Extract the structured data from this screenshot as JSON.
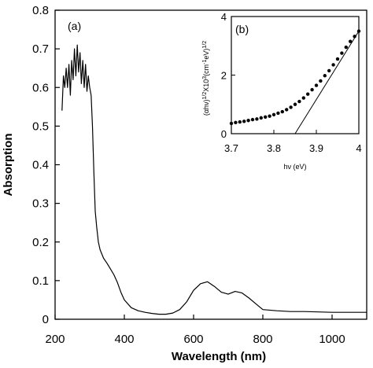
{
  "chart_data": [
    {
      "panel": "(a)",
      "type": "line",
      "xlabel": "Wavelength (nm)",
      "ylabel": "Absorption",
      "xlim": [
        200,
        1100
      ],
      "ylim": [
        0,
        0.8
      ],
      "xticks": [
        200,
        400,
        600,
        800,
        1000
      ],
      "yticks": [
        0,
        0.1,
        0.2,
        0.3,
        0.4,
        0.5,
        0.6,
        0.7,
        0.8
      ],
      "x": [
        220,
        224,
        228,
        232,
        236,
        240,
        244,
        248,
        252,
        256,
        260,
        264,
        268,
        272,
        276,
        280,
        284,
        288,
        292,
        296,
        300,
        304,
        308,
        312,
        316,
        320,
        325,
        330,
        340,
        350,
        360,
        370,
        380,
        390,
        400,
        420,
        440,
        460,
        480,
        500,
        520,
        540,
        560,
        580,
        600,
        620,
        640,
        660,
        680,
        700,
        720,
        740,
        760,
        780,
        800,
        840,
        880,
        920,
        960,
        1000,
        1040,
        1080,
        1100
      ],
      "y": [
        0.54,
        0.63,
        0.6,
        0.65,
        0.6,
        0.66,
        0.58,
        0.67,
        0.62,
        0.7,
        0.63,
        0.71,
        0.64,
        0.69,
        0.61,
        0.67,
        0.6,
        0.66,
        0.59,
        0.63,
        0.6,
        0.58,
        0.5,
        0.38,
        0.28,
        0.24,
        0.2,
        0.18,
        0.158,
        0.145,
        0.13,
        0.115,
        0.095,
        0.07,
        0.05,
        0.03,
        0.022,
        0.018,
        0.015,
        0.013,
        0.013,
        0.016,
        0.025,
        0.045,
        0.075,
        0.092,
        0.097,
        0.085,
        0.07,
        0.065,
        0.072,
        0.068,
        0.055,
        0.04,
        0.025,
        0.022,
        0.02,
        0.02,
        0.019,
        0.018,
        0.018,
        0.018,
        0.018
      ]
    },
    {
      "panel": "(b)",
      "type": "scatter",
      "xlabel": "hν (eV)",
      "ylabel": "(αhν)^{1/2}X10^{3}(cm^{-1}eV)^{1/2}",
      "xlim": [
        3.7,
        4.0
      ],
      "ylim": [
        0,
        4
      ],
      "xticks": [
        3.7,
        3.8,
        3.9,
        4.0
      ],
      "xtick_labels": [
        "3.7",
        "3.8",
        "3.9",
        "4"
      ],
      "yticks": [
        0,
        2,
        4
      ],
      "x": [
        3.7,
        3.71,
        3.72,
        3.73,
        3.74,
        3.75,
        3.76,
        3.77,
        3.78,
        3.79,
        3.8,
        3.81,
        3.82,
        3.83,
        3.84,
        3.85,
        3.86,
        3.87,
        3.88,
        3.89,
        3.9,
        3.91,
        3.92,
        3.93,
        3.94,
        3.95,
        3.96,
        3.97,
        3.98,
        3.99,
        4.0
      ],
      "y": [
        0.35,
        0.38,
        0.4,
        0.42,
        0.45,
        0.48,
        0.5,
        0.54,
        0.57,
        0.6,
        0.65,
        0.7,
        0.75,
        0.82,
        0.9,
        1.0,
        1.1,
        1.22,
        1.35,
        1.5,
        1.65,
        1.8,
        1.98,
        2.15,
        2.35,
        2.55,
        2.75,
        2.95,
        3.15,
        3.32,
        3.5
      ],
      "fit_line": {
        "x": [
          3.85,
          4.0
        ],
        "y": [
          0,
          3.5
        ]
      }
    }
  ]
}
